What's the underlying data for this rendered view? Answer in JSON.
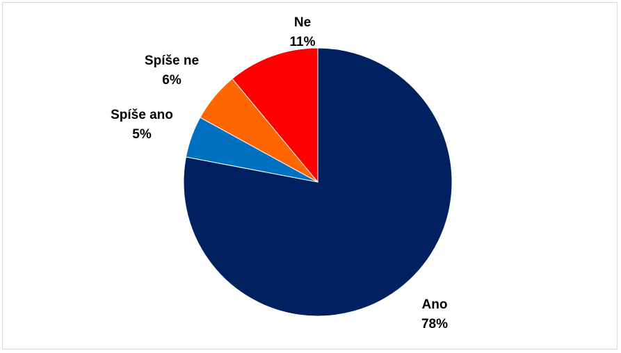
{
  "chart_data": {
    "type": "pie",
    "title": "",
    "slices": [
      {
        "name": "Ano",
        "value": 78,
        "label": "78%",
        "color": "#002060"
      },
      {
        "name": "Spíše ano",
        "value": 5,
        "label": "5%",
        "color": "#0070C0"
      },
      {
        "name": "Spíše ne",
        "value": 6,
        "label": "6%",
        "color": "#FF6600"
      },
      {
        "name": "Ne",
        "value": 11,
        "label": "11%",
        "color": "#FF0000"
      }
    ],
    "start": "12 o'clock",
    "direction": "clockwise",
    "legend": "none"
  }
}
